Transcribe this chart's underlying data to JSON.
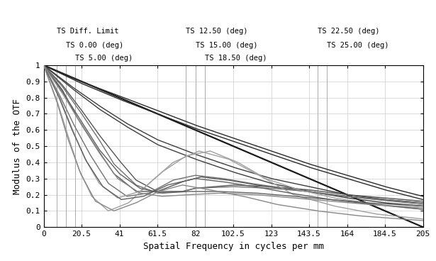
{
  "xlabel": "Spatial Frequency in cycles per mm",
  "ylabel": "Modulus of the OTF",
  "xlim": [
    0,
    205
  ],
  "ylim": [
    0.0,
    1.0
  ],
  "xticks": [
    0,
    20.5,
    41,
    61.5,
    82,
    102.5,
    123,
    143.5,
    164,
    184.5,
    205
  ],
  "yticks": [
    0.0,
    0.1,
    0.2,
    0.3,
    0.4,
    0.5,
    0.6,
    0.7,
    0.8,
    0.9,
    1.0
  ],
  "background_color": "#ffffff",
  "grid_color": "#cccccc",
  "vline_groups": [
    {
      "x": 7,
      "label": "TS Diff. Limit",
      "row": 0
    },
    {
      "x": 12,
      "label": "TS 0.00 (deg)",
      "row": 1
    },
    {
      "x": 17,
      "label": "TS 5.00 (deg)",
      "row": 2
    },
    {
      "x": 77,
      "label": "TS 12.50 (deg)",
      "row": 0
    },
    {
      "x": 82,
      "label": "TS 15.00 (deg)",
      "row": 1
    },
    {
      "x": 87,
      "label": "TS 18.50 (deg)",
      "row": 2
    },
    {
      "x": 148,
      "label": "TS 22.50 (deg)",
      "row": 0
    },
    {
      "x": 153,
      "label": "TS 25.00 (deg)",
      "row": 1
    }
  ],
  "max_freq": 205,
  "font_size_tick": 8,
  "font_size_label": 9,
  "font_size_annot": 7.5
}
